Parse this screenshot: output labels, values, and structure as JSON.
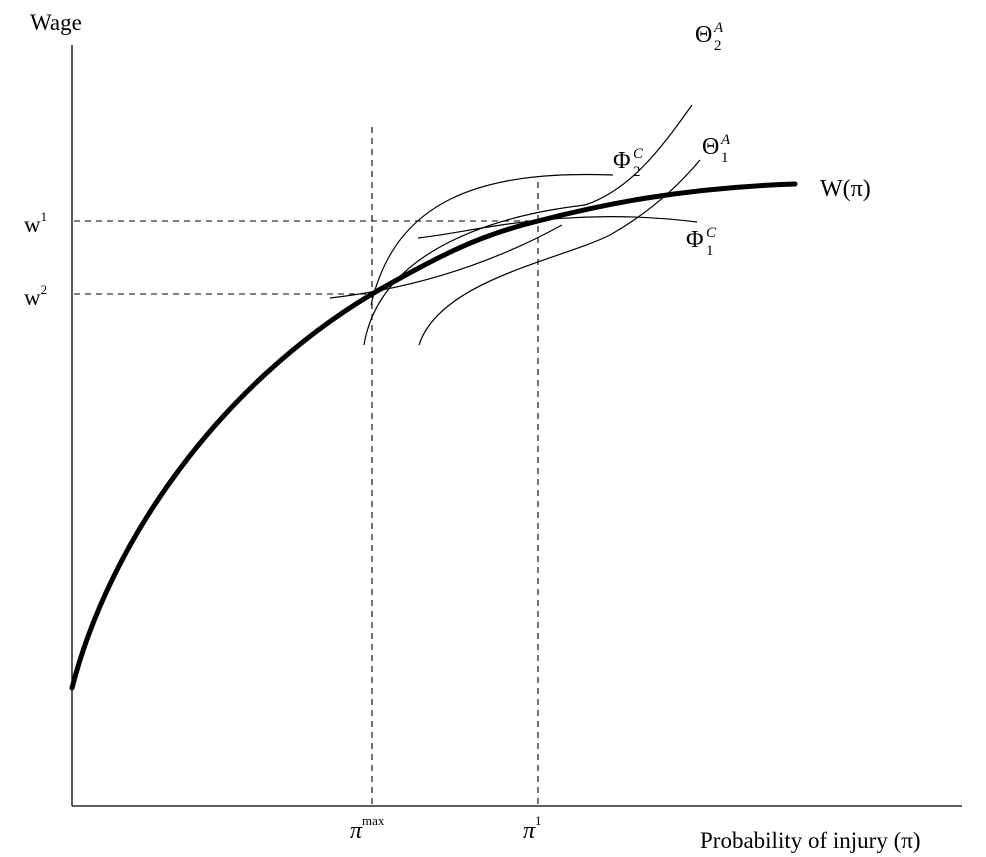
{
  "axes": {
    "y_label": "Wage",
    "x_label": "Probability of injury (π)"
  },
  "y_ticks": {
    "w1": {
      "base": "w",
      "sup": "1"
    },
    "w2": {
      "base": "w",
      "sup": "2"
    }
  },
  "x_ticks": {
    "pimax": {
      "base": "π",
      "sup": "max"
    },
    "pi1": {
      "base": "π",
      "sup": "1"
    }
  },
  "curves": {
    "wage_function": "W(π)",
    "theta2": {
      "base": "Θ",
      "sub": "2",
      "sup": "A"
    },
    "theta1": {
      "base": "Θ",
      "sub": "1",
      "sup": "A"
    },
    "phi2": {
      "base": "Φ",
      "sub": "2",
      "sup": "C"
    },
    "phi1": {
      "base": "Φ",
      "sub": "1",
      "sup": "C"
    }
  }
}
